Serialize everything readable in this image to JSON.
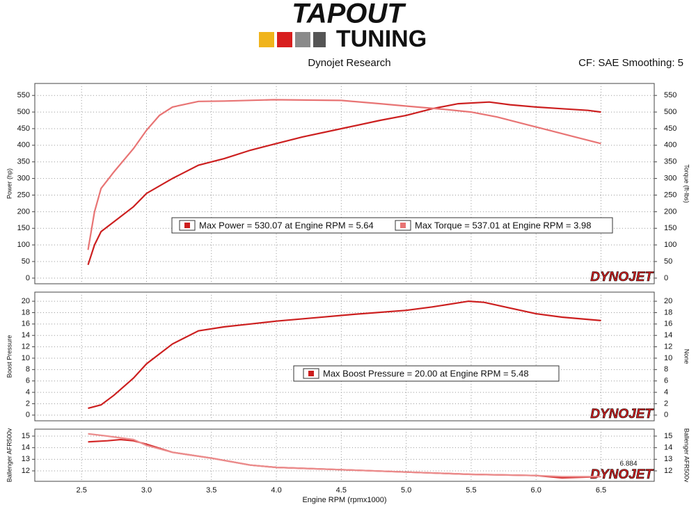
{
  "header": {
    "logo_top": "TAPOUT",
    "logo_bottom": "TUNING",
    "title": "Dynojet Research",
    "settings": "CF: SAE Smoothing: 5"
  },
  "chart_data": [
    {
      "type": "line",
      "ylabel": "Power (hp)",
      "y2label": "Torque (ft-lbs)",
      "watermark": "DYNOJET",
      "xlim": [
        2.14,
        6.91
      ],
      "ylim": [
        -17,
        586
      ],
      "y2lim": [
        -17,
        586
      ],
      "yticks": [
        0,
        50,
        100,
        150,
        200,
        250,
        300,
        350,
        400,
        450,
        500,
        550
      ],
      "y2ticks": [
        0,
        50,
        100,
        150,
        200,
        250,
        300,
        350,
        400,
        450,
        500,
        550
      ],
      "grid": true,
      "series": [
        {
          "name": "Max Power = 530.07 at Engine RPM = 5.64",
          "color": "#cc1f1f",
          "x": [
            2.55,
            2.6,
            2.65,
            2.75,
            2.9,
            3.0,
            3.2,
            3.4,
            3.6,
            3.8,
            4.0,
            4.2,
            4.5,
            4.8,
            5.0,
            5.2,
            5.4,
            5.64,
            5.8,
            6.0,
            6.2,
            6.4,
            6.5
          ],
          "values": [
            40,
            100,
            140,
            170,
            215,
            255,
            300,
            340,
            360,
            385,
            405,
            425,
            450,
            475,
            490,
            510,
            525,
            530,
            522,
            515,
            510,
            505,
            500
          ]
        },
        {
          "name": "Max Torque = 537.01 at Engine RPM = 3.98",
          "color": "#e87474",
          "axis": "y2",
          "x": [
            2.55,
            2.6,
            2.65,
            2.75,
            2.9,
            3.0,
            3.1,
            3.2,
            3.4,
            3.6,
            3.98,
            4.5,
            4.8,
            5.0,
            5.3,
            5.5,
            5.7,
            5.9,
            6.1,
            6.3,
            6.5
          ],
          "values": [
            85,
            200,
            270,
            320,
            390,
            445,
            490,
            515,
            532,
            533,
            537,
            535,
            525,
            518,
            508,
            500,
            485,
            465,
            445,
            425,
            405
          ]
        }
      ]
    },
    {
      "type": "line",
      "ylabel": "Boost Pressure",
      "y2label": "None",
      "watermark": "DYNOJET",
      "xlim": [
        2.14,
        6.91
      ],
      "ylim": [
        -1,
        21.6
      ],
      "y2lim": [
        -1,
        21.6
      ],
      "yticks": [
        0,
        2,
        4,
        6,
        8,
        10,
        12,
        14,
        16,
        18,
        20
      ],
      "y2ticks": [
        0,
        2,
        4,
        6,
        8,
        10,
        12,
        14,
        16,
        18,
        20
      ],
      "grid": true,
      "series": [
        {
          "name": "Max Boost Pressure = 20.00 at Engine RPM = 5.48",
          "color": "#cc1f1f",
          "x": [
            2.55,
            2.65,
            2.75,
            2.9,
            3.0,
            3.2,
            3.4,
            3.6,
            3.8,
            4.0,
            4.3,
            4.6,
            5.0,
            5.2,
            5.48,
            5.6,
            5.8,
            6.0,
            6.2,
            6.5
          ],
          "values": [
            1.2,
            1.8,
            3.5,
            6.5,
            9,
            12.5,
            14.8,
            15.5,
            16,
            16.5,
            17.1,
            17.7,
            18.4,
            19,
            20,
            19.8,
            18.8,
            17.8,
            17.2,
            16.6
          ]
        }
      ]
    },
    {
      "type": "line",
      "ylabel": "Ballenger AFR500v",
      "y2label": "Ballenger AFR500v",
      "xlabel": "Engine RPM (rpmx1000)",
      "watermark": "DYNOJET",
      "annotation": "6.884",
      "xlim": [
        2.14,
        6.91
      ],
      "ylim": [
        11.1,
        15.6
      ],
      "y2lim": [
        11.1,
        15.6
      ],
      "xticks": [
        2.5,
        {
          "value": 3,
          "label": "3.0"
        },
        3.5,
        {
          "value": 4,
          "label": "4.0"
        },
        4.5,
        {
          "value": 5,
          "label": "5.0"
        },
        5.5,
        {
          "value": 6,
          "label": "6.0"
        },
        6.5
      ],
      "yticks": [
        12,
        13,
        14,
        15
      ],
      "y2ticks": [
        12,
        13,
        14,
        15
      ],
      "grid": true,
      "series": [
        {
          "color": "#d42a2a",
          "x": [
            2.55,
            2.7,
            2.8,
            2.9,
            3.0,
            3.2,
            3.5,
            3.8,
            4.0,
            4.5,
            5.0,
            5.5,
            6.0,
            6.2,
            6.5
          ],
          "values": [
            14.5,
            14.6,
            14.7,
            14.6,
            14.3,
            13.6,
            13.1,
            12.5,
            12.3,
            12.1,
            11.9,
            11.7,
            11.6,
            11.4,
            11.5
          ]
        },
        {
          "color": "#eb8c8c",
          "x": [
            2.55,
            2.7,
            2.9,
            3.0,
            3.2,
            3.5,
            3.8,
            4.0,
            4.5,
            5.0,
            5.5,
            6.0,
            6.2,
            6.5
          ],
          "values": [
            15.2,
            15.0,
            14.7,
            14.2,
            13.6,
            13.1,
            12.5,
            12.3,
            12.1,
            11.9,
            11.7,
            11.6,
            11.5,
            11.5
          ]
        }
      ]
    }
  ]
}
